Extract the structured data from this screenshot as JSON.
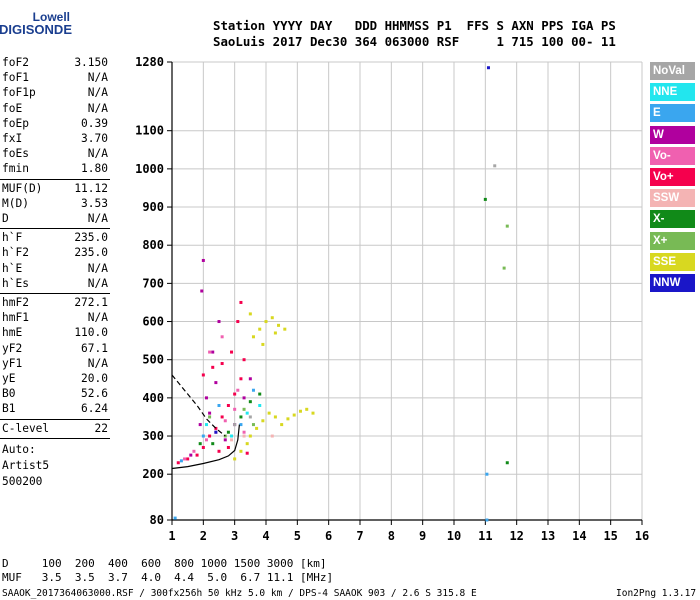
{
  "logo": {
    "top": "Lowell",
    "main": "DIGISONDE"
  },
  "header": {
    "line1": "Station YYYY DAY   DDD HHMMSS P1  FFS S AXN PPS IGA PS",
    "line2": "SaoLuis 2017 Dec30 364 063000 RSF     1 715 100 00- 11"
  },
  "sidebar": {
    "groups": [
      [
        {
          "k": "foF2",
          "v": "3.150"
        },
        {
          "k": "foF1",
          "v": "N/A"
        },
        {
          "k": "foF1p",
          "v": "N/A"
        },
        {
          "k": "foE",
          "v": "N/A"
        },
        {
          "k": "foEp",
          "v": "0.39"
        },
        {
          "k": "fxI",
          "v": "3.70"
        },
        {
          "k": "foEs",
          "v": "N/A"
        },
        {
          "k": "fmin",
          "v": "1.80"
        }
      ],
      [
        {
          "k": "MUF(D)",
          "v": "11.12"
        },
        {
          "k": "M(D)",
          "v": "3.53"
        },
        {
          "k": "D",
          "v": "N/A"
        }
      ],
      [
        {
          "k": "h`F",
          "v": "235.0"
        },
        {
          "k": "h`F2",
          "v": "235.0"
        },
        {
          "k": "h`E",
          "v": "N/A"
        },
        {
          "k": "h`Es",
          "v": "N/A"
        }
      ],
      [
        {
          "k": "hmF2",
          "v": "272.1"
        },
        {
          "k": "hmF1",
          "v": "N/A"
        },
        {
          "k": "hmE",
          "v": "110.0"
        },
        {
          "k": "yF2",
          "v": "67.1"
        },
        {
          "k": "yF1",
          "v": "N/A"
        },
        {
          "k": "yE",
          "v": "20.0"
        },
        {
          "k": "B0",
          "v": "52.6"
        },
        {
          "k": "B1",
          "v": "6.24"
        }
      ],
      [
        {
          "k": "C-level",
          "v": "22"
        }
      ]
    ],
    "auto": [
      "Auto:",
      "Artist5",
      "500200"
    ]
  },
  "legend": [
    {
      "label": "NoVal",
      "color": "#a6a6a6"
    },
    {
      "label": "NNE",
      "color": "#22e6ee"
    },
    {
      "label": "E",
      "color": "#3aa6ef"
    },
    {
      "label": "W",
      "color": "#b0009e"
    },
    {
      "label": "Vo-",
      "color": "#f060b0"
    },
    {
      "label": "Vo+",
      "color": "#f5004d"
    },
    {
      "label": "SSW",
      "color": "#f4b4b4"
    },
    {
      "label": "X-",
      "color": "#118a18"
    },
    {
      "label": "X+",
      "color": "#78ba55"
    },
    {
      "label": "SSE",
      "color": "#d8d820"
    },
    {
      "label": "NNW",
      "color": "#1a16c8"
    }
  ],
  "footer": {
    "line1": "D     100  200  400  600  800 1000 1500 3000 [km]",
    "line2": "MUF   3.5  3.5  3.7  4.0  4.4  5.0  6.7 11.1 [MHz]",
    "line3": "SAAOK_2017364063000.RSF / 300fx256h 50 kHz 5.0 km / DPS-4 SAAOK 903 / 2.6 S 315.8 E",
    "version": "Ion2Png 1.3.17"
  },
  "chart_data": {
    "type": "scatter",
    "x_ticks": [
      1,
      2,
      3,
      4,
      5,
      6,
      7,
      8,
      9,
      10,
      11,
      12,
      13,
      14,
      15,
      16
    ],
    "y_ticks": [
      80,
      200,
      300,
      400,
      500,
      600,
      700,
      800,
      900,
      1000,
      1100,
      1280
    ],
    "xlim": [
      1,
      16
    ],
    "ylim": [
      80,
      1280
    ],
    "grid": true,
    "series": [
      {
        "color": "#d8d820",
        "points": [
          [
            3.5,
            300
          ],
          [
            3.7,
            320
          ],
          [
            3.9,
            340
          ],
          [
            4.1,
            360
          ],
          [
            4.3,
            350
          ],
          [
            4.5,
            330
          ],
          [
            4.7,
            345
          ],
          [
            4.9,
            355
          ],
          [
            5.1,
            365
          ],
          [
            5.3,
            370
          ],
          [
            5.5,
            360
          ],
          [
            3.6,
            560
          ],
          [
            3.8,
            580
          ],
          [
            4.0,
            600
          ],
          [
            4.2,
            610
          ],
          [
            4.4,
            590
          ],
          [
            4.6,
            580
          ],
          [
            3.5,
            620
          ],
          [
            3.9,
            540
          ],
          [
            4.3,
            570
          ],
          [
            3.2,
            260
          ],
          [
            3.4,
            280
          ],
          [
            3.0,
            240
          ]
        ]
      },
      {
        "color": "#f5004d",
        "points": [
          [
            1.2,
            230
          ],
          [
            1.5,
            240
          ],
          [
            1.8,
            250
          ],
          [
            2.0,
            270
          ],
          [
            2.2,
            300
          ],
          [
            2.4,
            320
          ],
          [
            2.6,
            350
          ],
          [
            2.8,
            380
          ],
          [
            3.0,
            410
          ],
          [
            3.2,
            450
          ],
          [
            3.3,
            500
          ],
          [
            2.0,
            460
          ],
          [
            2.3,
            480
          ],
          [
            2.6,
            490
          ],
          [
            2.9,
            520
          ],
          [
            3.1,
            600
          ],
          [
            3.2,
            650
          ],
          [
            2.8,
            270
          ],
          [
            2.5,
            260
          ],
          [
            3.4,
            255
          ]
        ]
      },
      {
        "color": "#b0009e",
        "points": [
          [
            1.6,
            250
          ],
          [
            1.9,
            330
          ],
          [
            2.1,
            400
          ],
          [
            2.3,
            520
          ],
          [
            2.5,
            600
          ],
          [
            2.0,
            760
          ],
          [
            1.95,
            680
          ],
          [
            2.2,
            360
          ],
          [
            2.7,
            290
          ],
          [
            3.0,
            330
          ],
          [
            3.3,
            400
          ],
          [
            3.5,
            450
          ],
          [
            2.4,
            440
          ]
        ]
      },
      {
        "color": "#f060b0",
        "points": [
          [
            1.4,
            240
          ],
          [
            1.7,
            260
          ],
          [
            2.1,
            290
          ],
          [
            2.4,
            310
          ],
          [
            2.7,
            340
          ],
          [
            3.0,
            370
          ],
          [
            2.2,
            520
          ],
          [
            2.6,
            560
          ],
          [
            3.1,
            420
          ],
          [
            3.3,
            310
          ]
        ]
      },
      {
        "color": "#3aa6ef",
        "points": [
          [
            1.3,
            235
          ],
          [
            2.0,
            300
          ],
          [
            2.5,
            380
          ],
          [
            3.2,
            330
          ],
          [
            3.6,
            420
          ],
          [
            11.05,
            200
          ],
          [
            11.05,
            80
          ],
          [
            1.1,
            85
          ]
        ]
      },
      {
        "color": "#22e6ee",
        "points": [
          [
            2.1,
            330
          ],
          [
            2.9,
            300
          ],
          [
            3.4,
            360
          ],
          [
            3.8,
            380
          ]
        ]
      },
      {
        "color": "#118a18",
        "points": [
          [
            1.9,
            280
          ],
          [
            2.3,
            280
          ],
          [
            2.8,
            310
          ],
          [
            3.2,
            350
          ],
          [
            3.5,
            390
          ],
          [
            3.8,
            410
          ],
          [
            11.0,
            920
          ],
          [
            11.7,
            230
          ]
        ]
      },
      {
        "color": "#78ba55",
        "points": [
          [
            2.2,
            350
          ],
          [
            2.7,
            300
          ],
          [
            3.3,
            370
          ],
          [
            3.6,
            330
          ],
          [
            11.6,
            740
          ],
          [
            11.7,
            850
          ]
        ]
      },
      {
        "color": "#f4b4b4",
        "points": [
          [
            2.9,
            290
          ],
          [
            3.3,
            300
          ],
          [
            4.2,
            300
          ]
        ]
      },
      {
        "color": "#1a16c8",
        "points": [
          [
            2.4,
            310
          ],
          [
            11.1,
            1265
          ]
        ]
      },
      {
        "color": "#a6a6a6",
        "points": [
          [
            3.0,
            330
          ],
          [
            3.5,
            350
          ],
          [
            11.3,
            1008
          ]
        ]
      }
    ],
    "curves": [
      {
        "style": "solid",
        "points": [
          [
            1.0,
            215
          ],
          [
            1.5,
            220
          ],
          [
            2.0,
            228
          ],
          [
            2.5,
            238
          ],
          [
            2.8,
            248
          ],
          [
            3.0,
            262
          ],
          [
            3.1,
            290
          ],
          [
            3.15,
            330
          ]
        ]
      },
      {
        "style": "dashed",
        "points": [
          [
            1.0,
            460
          ],
          [
            1.4,
            420
          ],
          [
            1.8,
            380
          ],
          [
            2.1,
            345
          ],
          [
            2.4,
            320
          ],
          [
            2.7,
            300
          ]
        ]
      }
    ]
  }
}
